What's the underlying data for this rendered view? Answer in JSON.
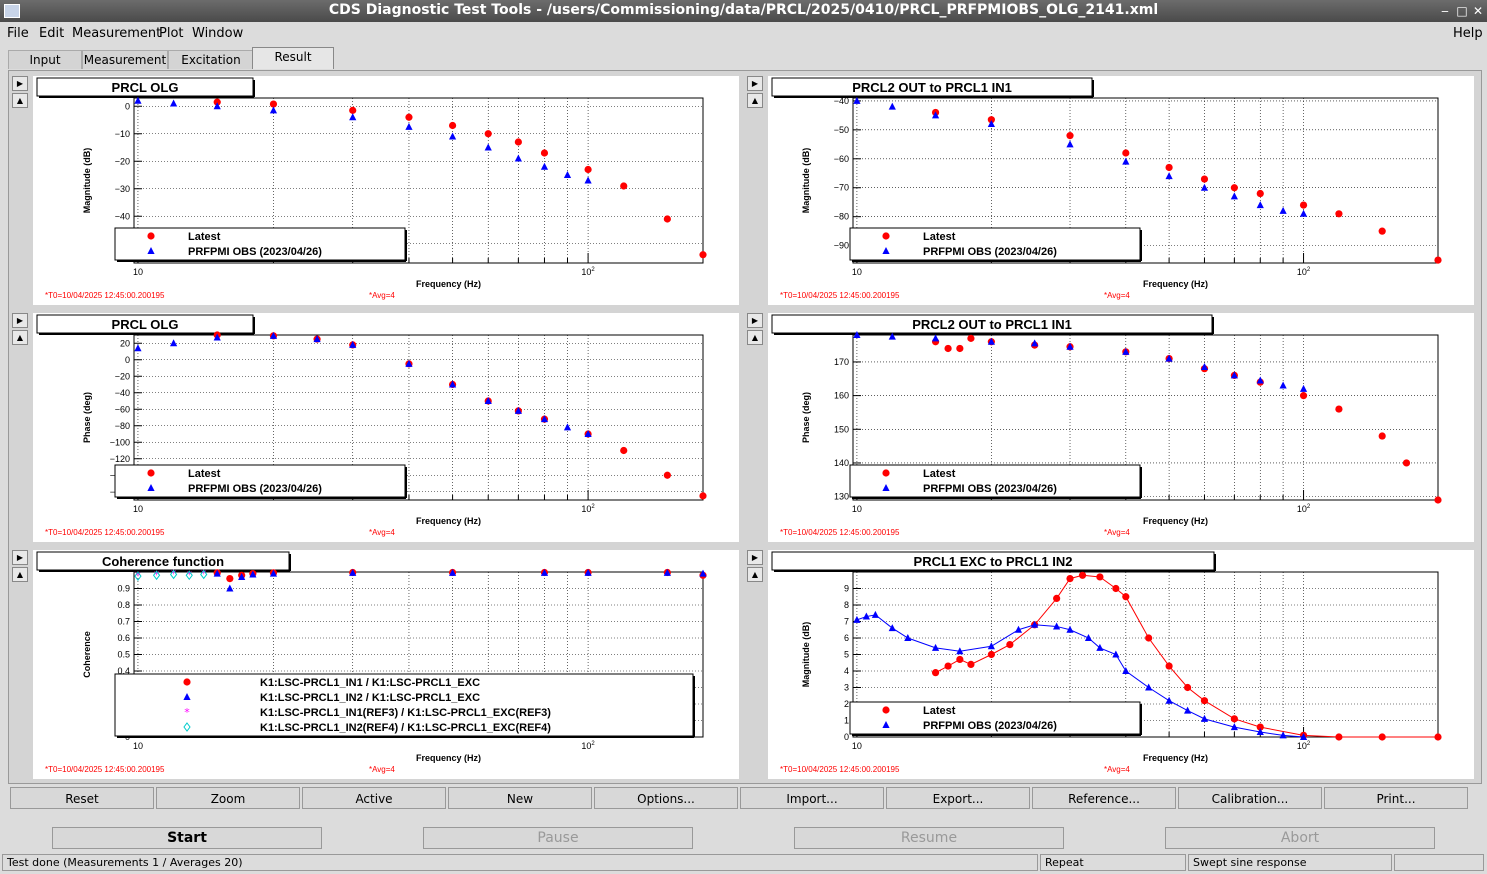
{
  "window": {
    "title": "CDS Diagnostic Test Tools - /users/Commissioning/data/PRCL/2025/0410/PRCL_PRFPMIOBS_OLG_2141.xml"
  },
  "menu": [
    "File",
    "Edit",
    "Measurement",
    "Plot",
    "Window"
  ],
  "menu_help": "Help",
  "tabs": [
    "Input",
    "Measurement",
    "Excitation",
    "Result"
  ],
  "toolbar": [
    "Reset",
    "Zoom",
    "Active",
    "New",
    "Options...",
    "Import...",
    "Export...",
    "Reference...",
    "Calibration...",
    "Print..."
  ],
  "controls": {
    "start": "Start",
    "pause": "Pause",
    "resume": "Resume",
    "abort": "Abort"
  },
  "status": {
    "main": "Test done (Measurements 1 / Averages 20)",
    "mode": "Repeat",
    "type": "Swept sine response"
  },
  "colors": {
    "latest": "#ff0000",
    "reference": "#0000ff",
    "ref3": "#ff00ff",
    "ref4": "#00cccc",
    "annot": "#ff0000"
  },
  "chart_data": [
    {
      "title": "PRCL OLG",
      "type": "scatter",
      "xscale": "log",
      "xlim": [
        9.8,
        180
      ],
      "ylabel": "Magnitude (dB)",
      "xlabel": "Frequency (Hz)",
      "ylim": [
        -57,
        3
      ],
      "yticks": [
        0,
        -10,
        -20,
        -30,
        -40,
        -50
      ],
      "t0": "T0=10/04/2025 12:45:00.200195",
      "avg": "Avg=4",
      "legend": [
        "Latest",
        "PRFPMI OBS (2023/04/26)"
      ],
      "series": [
        {
          "name": "Latest",
          "color": "#ff0000",
          "marker": "circle",
          "x": [
            15,
            20,
            30,
            40,
            50,
            60,
            70,
            80,
            100,
            120,
            150,
            180
          ],
          "y": [
            1.5,
            0.8,
            -1.5,
            -4,
            -7,
            -10,
            -13,
            -17,
            -23,
            -29,
            -41,
            -54
          ]
        },
        {
          "name": "PRFPMI OBS (2023/04/26)",
          "color": "#0000ff",
          "marker": "triangle",
          "x": [
            10,
            12,
            15,
            20,
            30,
            40,
            50,
            60,
            70,
            80,
            90,
            100
          ],
          "y": [
            2,
            1,
            0,
            -1.5,
            -4,
            -7.5,
            -11,
            -15,
            -19,
            -22,
            -25,
            -27
          ]
        }
      ]
    },
    {
      "title": "PRCL2 OUT to PRCL1 IN1",
      "type": "scatter",
      "xscale": "log",
      "xlim": [
        9.8,
        200
      ],
      "ylabel": "Magnitude (dB)",
      "xlabel": "Frequency (Hz)",
      "ylim": [
        -96,
        -39
      ],
      "yticks": [
        -40,
        -50,
        -60,
        -70,
        -80,
        -90
      ],
      "t0": "T0=10/04/2025 12:45:00.200195",
      "avg": "Avg=4",
      "legend": [
        "Latest",
        "PRFPMI OBS (2023/04/26)"
      ],
      "series": [
        {
          "name": "Latest",
          "color": "#ff0000",
          "marker": "circle",
          "x": [
            15,
            20,
            30,
            40,
            50,
            60,
            70,
            80,
            100,
            120,
            150,
            200
          ],
          "y": [
            -44,
            -46.5,
            -52,
            -58,
            -63,
            -67,
            -70,
            -72,
            -76,
            -79,
            -85,
            -95
          ]
        },
        {
          "name": "PRFPMI OBS (2023/04/26)",
          "color": "#0000ff",
          "marker": "triangle",
          "x": [
            10,
            12,
            15,
            20,
            30,
            40,
            50,
            60,
            70,
            80,
            90,
            100
          ],
          "y": [
            -40,
            -42,
            -45,
            -48,
            -55,
            -61,
            -66,
            -70,
            -73,
            -76,
            -78,
            -79
          ]
        }
      ]
    },
    {
      "title": "PRCL OLG",
      "type": "scatter",
      "xscale": "log",
      "xlim": [
        9.8,
        180
      ],
      "ylabel": "Phase (deg)",
      "xlabel": "Frequency (Hz)",
      "ylim": [
        -170,
        30
      ],
      "yticks": [
        20,
        0,
        -20,
        -40,
        -60,
        -80,
        -100,
        -120,
        -140,
        -160
      ],
      "t0": "T0=10/04/2025 12:45:00.200195",
      "avg": "Avg=4",
      "legend": [
        "Latest",
        "PRFPMI OBS (2023/04/26)"
      ],
      "series": [
        {
          "name": "Latest",
          "color": "#ff0000",
          "marker": "circle",
          "x": [
            15,
            20,
            25,
            30,
            40,
            50,
            60,
            70,
            80,
            100,
            120,
            150,
            180
          ],
          "y": [
            30,
            29,
            25,
            18,
            -5,
            -30,
            -50,
            -62,
            -72,
            -90,
            -110,
            -140,
            -165
          ]
        },
        {
          "name": "PRFPMI OBS (2023/04/26)",
          "color": "#0000ff",
          "marker": "triangle",
          "x": [
            10,
            12,
            15,
            20,
            25,
            30,
            40,
            50,
            60,
            70,
            80,
            90,
            100
          ],
          "y": [
            14,
            20,
            27,
            29,
            25,
            18,
            -5,
            -30,
            -50,
            -62,
            -72,
            -82,
            -90
          ]
        }
      ]
    },
    {
      "title": "PRCL2 OUT to PRCL1 IN1",
      "type": "scatter",
      "xscale": "log",
      "xlim": [
        9.8,
        200
      ],
      "ylabel": "Phase (deg)",
      "xlabel": "Frequency (Hz)",
      "ylim": [
        129,
        178
      ],
      "yticks": [
        170,
        160,
        150,
        140,
        130
      ],
      "t0": "T0=10/04/2025 12:45:00.200195",
      "avg": "Avg=4",
      "legend": [
        "Latest",
        "PRFPMI OBS (2023/04/26)"
      ],
      "series": [
        {
          "name": "Latest",
          "color": "#ff0000",
          "marker": "circle",
          "x": [
            15,
            16,
            17,
            18,
            20,
            25,
            30,
            40,
            50,
            60,
            70,
            80,
            100,
            120,
            150,
            170,
            200
          ],
          "y": [
            176,
            174,
            174,
            177,
            176,
            175,
            174.5,
            173,
            171,
            168,
            166,
            164,
            160,
            156,
            148,
            140,
            129
          ]
        },
        {
          "name": "PRFPMI OBS (2023/04/26)",
          "color": "#0000ff",
          "marker": "triangle",
          "x": [
            10,
            12,
            15,
            20,
            25,
            30,
            40,
            50,
            60,
            70,
            80,
            90,
            100
          ],
          "y": [
            178,
            177.5,
            177,
            176,
            175.5,
            174.5,
            173,
            171,
            168.5,
            166,
            164.5,
            163,
            162
          ]
        }
      ]
    },
    {
      "title": "Coherence function",
      "type": "scatter",
      "xscale": "log",
      "xlim": [
        9.8,
        180
      ],
      "ylabel": "Coherence",
      "xlabel": "Frequency (Hz)",
      "ylim": [
        0,
        1
      ],
      "yticks": [
        0.9,
        0.8,
        0.7,
        0.6,
        0.5,
        0.4,
        0.3,
        0.2,
        0.1,
        0
      ],
      "t0": "T0=10/04/2025 12:45:00.200195",
      "avg": "Avg=4",
      "legend": [
        "K1:LSC-PRCL1_IN1 / K1:LSC-PRCL1_EXC",
        "K1:LSC-PRCL1_IN2 / K1:LSC-PRCL1_EXC",
        "K1:LSC-PRCL1_IN1(REF3) / K1:LSC-PRCL1_EXC(REF3)",
        "K1:LSC-PRCL1_IN2(REF4) / K1:LSC-PRCL1_EXC(REF4)"
      ],
      "series": [
        {
          "name": "K1:LSC-PRCL1_IN1 / K1:LSC-PRCL1_EXC",
          "color": "#ff0000",
          "marker": "circle",
          "x": [
            15,
            16,
            17,
            18,
            20,
            30,
            50,
            80,
            100,
            150,
            180
          ],
          "y": [
            0.995,
            0.96,
            0.98,
            0.99,
            0.995,
            0.997,
            0.997,
            0.997,
            0.997,
            0.997,
            0.98
          ]
        },
        {
          "name": "K1:LSC-PRCL1_IN2 / K1:LSC-PRCL1_EXC",
          "color": "#0000ff",
          "marker": "triangle",
          "x": [
            15,
            16,
            17,
            18,
            20,
            30,
            50,
            80,
            100,
            150,
            180
          ],
          "y": [
            0.99,
            0.9,
            0.97,
            0.985,
            0.99,
            0.995,
            0.995,
            0.995,
            0.995,
            0.995,
            0.99
          ]
        },
        {
          "name": "K1:LSC-PRCL1_IN1(REF3) / K1:LSC-PRCL1_EXC(REF3)",
          "color": "#ff00ff",
          "marker": "star",
          "x": [
            10,
            11,
            12,
            13,
            14
          ],
          "y": [
            0.98,
            0.985,
            0.99,
            0.985,
            0.99
          ]
        },
        {
          "name": "K1:LSC-PRCL1_IN2(REF4) / K1:LSC-PRCL1_EXC(REF4)",
          "color": "#00cccc",
          "marker": "diamond",
          "x": [
            10,
            11,
            12,
            13,
            14
          ],
          "y": [
            0.975,
            0.98,
            0.985,
            0.98,
            0.985
          ]
        }
      ]
    },
    {
      "title": "PRCL1 EXC to PRCL1 IN2",
      "type": "line",
      "xscale": "log",
      "xlim": [
        9.8,
        200
      ],
      "ylabel": "Magnitude (dB)",
      "xlabel": "Frequency (Hz)",
      "ylim": [
        0,
        10
      ],
      "yticks": [
        9,
        8,
        7,
        6,
        5,
        4,
        3,
        2,
        1,
        0
      ],
      "t0": "T0=10/04/2025 12:45:00.200195",
      "avg": "Avg=4",
      "legend": [
        "Latest",
        "PRFPMI OBS (2023/04/26)"
      ],
      "series": [
        {
          "name": "Latest",
          "color": "#ff0000",
          "marker": "circle",
          "x": [
            15,
            16,
            17,
            18,
            20,
            22,
            25,
            28,
            30,
            32,
            35,
            38,
            40,
            45,
            50,
            55,
            60,
            70,
            80,
            100,
            120,
            150,
            200
          ],
          "y": [
            3.9,
            4.3,
            4.7,
            4.4,
            5,
            5.6,
            6.8,
            8.4,
            9.6,
            9.8,
            9.7,
            9,
            8.5,
            6,
            4.3,
            3,
            2.2,
            1.1,
            0.6,
            0.1,
            0,
            0,
            0
          ]
        },
        {
          "name": "PRFPMI OBS (2023/04/26)",
          "color": "#0000ff",
          "marker": "triangle",
          "x": [
            10,
            10.5,
            11,
            12,
            13,
            15,
            17,
            20,
            23,
            25,
            28,
            30,
            33,
            35,
            38,
            40,
            45,
            50,
            55,
            60,
            70,
            80,
            90,
            100
          ],
          "y": [
            7.1,
            7.3,
            7.4,
            6.6,
            6,
            5.4,
            5.2,
            5.5,
            6.5,
            6.8,
            6.7,
            6.5,
            6,
            5.4,
            5,
            4,
            3,
            2.2,
            1.6,
            1.1,
            0.6,
            0.3,
            0.1,
            0
          ]
        }
      ]
    }
  ]
}
